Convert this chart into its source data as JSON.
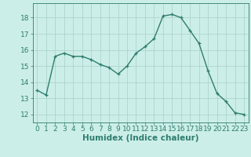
{
  "x": [
    0,
    1,
    2,
    3,
    4,
    5,
    6,
    7,
    8,
    9,
    10,
    11,
    12,
    13,
    14,
    15,
    16,
    17,
    18,
    19,
    20,
    21,
    22,
    23
  ],
  "y": [
    13.5,
    13.2,
    15.6,
    15.8,
    15.6,
    15.6,
    15.4,
    15.1,
    14.9,
    14.5,
    15.0,
    15.8,
    16.2,
    16.7,
    18.1,
    18.2,
    18.0,
    17.2,
    16.4,
    14.7,
    13.3,
    12.8,
    12.1,
    12.0
  ],
  "line_color": "#2e7d6e",
  "marker": "+",
  "marker_size": 3,
  "bg_color": "#cceee8",
  "grid_color": "#aed4ce",
  "xlabel": "Humidex (Indice chaleur)",
  "ylim": [
    11.5,
    18.9
  ],
  "xlim": [
    -0.5,
    23.5
  ],
  "yticks": [
    12,
    13,
    14,
    15,
    16,
    17,
    18
  ],
  "xticks": [
    0,
    1,
    2,
    3,
    4,
    5,
    6,
    7,
    8,
    9,
    10,
    11,
    12,
    13,
    14,
    15,
    16,
    17,
    18,
    19,
    20,
    21,
    22,
    23
  ],
  "tick_font_size": 6.5,
  "label_font_size": 7.5,
  "linewidth": 1.0,
  "markeredgewidth": 0.9
}
